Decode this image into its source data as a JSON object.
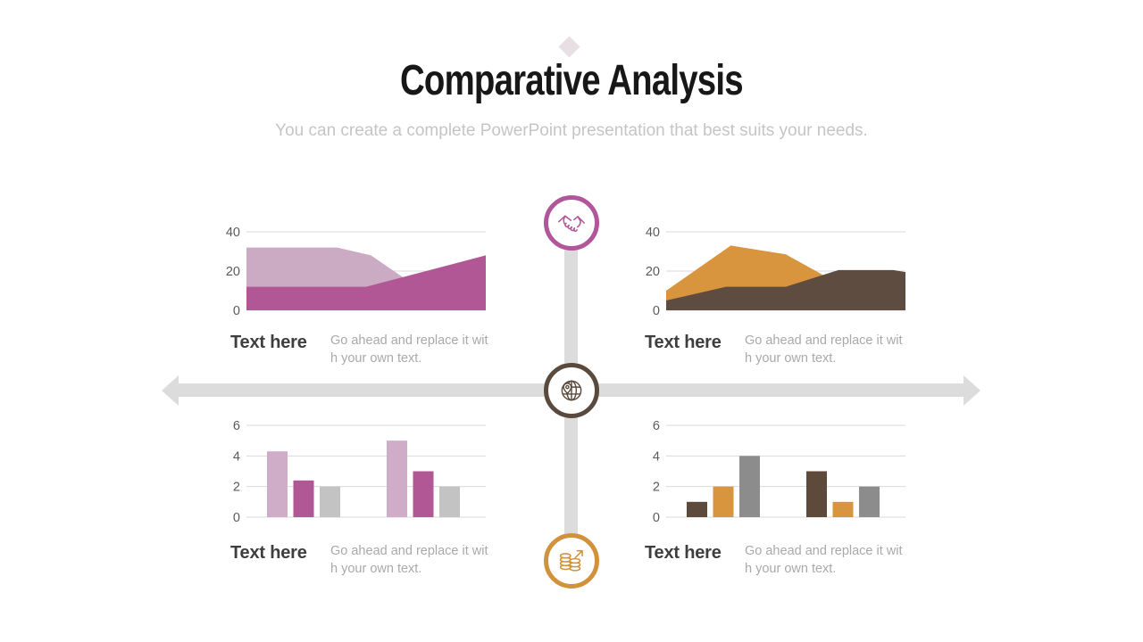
{
  "slide": {
    "title": "Comparative Analysis",
    "subtitle": "You can create a complete PowerPoint presentation that best suits your needs.",
    "accent_diamond_color": "#e8dfe5",
    "axis_color": "#dcdcdc"
  },
  "icons": [
    {
      "id": "handshake",
      "color": "#b2569b"
    },
    {
      "id": "globe-location",
      "color": "#5a4a3d"
    },
    {
      "id": "coins-growth",
      "color": "#d2923c"
    }
  ],
  "quadrants": [
    {
      "id": "top-left",
      "label": "Text here",
      "desc_line1": "Go ahead and replace it wit",
      "desc_line2": "h your own text."
    },
    {
      "id": "top-right",
      "label": "Text here",
      "desc_line1": "Go ahead and replace it wit",
      "desc_line2": "h your own text."
    },
    {
      "id": "bottom-left",
      "label": "Text here",
      "desc_line1": "Go ahead and replace it wit",
      "desc_line2": "h your own text."
    },
    {
      "id": "bottom-right",
      "label": "Text here",
      "desc_line1": "Go ahead and replace it wit",
      "desc_line2": "h your own text."
    }
  ],
  "chart_style": {
    "grid_color": "#d9d9d9",
    "tick_color": "#5a5a5a",
    "tick_font_size": 14.5
  },
  "chart_data": [
    {
      "type": "area",
      "position": "top-left",
      "title": "",
      "ylim": [
        0,
        40
      ],
      "yticks": [
        0,
        20,
        40
      ],
      "grid": true,
      "legend": "none",
      "series": [
        {
          "name": "light-pink-area",
          "color": "#cbaac4",
          "x": [
            0,
            0.38,
            0.52,
            0.7,
            1.0
          ],
          "values": [
            32,
            32,
            28,
            13,
            12
          ]
        },
        {
          "name": "magenta-area",
          "color": "#b15796",
          "x": [
            0,
            0.5,
            1.0
          ],
          "values": [
            12,
            12,
            28
          ]
        }
      ]
    },
    {
      "type": "area",
      "position": "top-right",
      "title": "",
      "ylim": [
        0,
        40
      ],
      "yticks": [
        0,
        20,
        40
      ],
      "grid": true,
      "legend": "none",
      "series": [
        {
          "name": "orange-area",
          "color": "#d9943e",
          "x": [
            0,
            0.27,
            0.5,
            0.7,
            1.0
          ],
          "values": [
            10,
            33,
            28.5,
            15,
            12
          ]
        },
        {
          "name": "brown-area",
          "color": "#5d4c3f",
          "x": [
            0,
            0.25,
            0.5,
            0.72,
            0.95,
            1.0
          ],
          "values": [
            5,
            12,
            12,
            20.5,
            20.5,
            19.5
          ]
        }
      ]
    },
    {
      "type": "bar",
      "position": "bottom-left",
      "title": "",
      "ylim": [
        0,
        6
      ],
      "yticks": [
        0,
        2,
        4,
        6
      ],
      "grid": true,
      "legend": "none",
      "groups": 2,
      "series": [
        {
          "name": "light-pink-bars",
          "color": "#cfadc8",
          "values": [
            4.3,
            5
          ]
        },
        {
          "name": "magenta-bars",
          "color": "#b15796",
          "values": [
            2.4,
            3
          ]
        },
        {
          "name": "gray-bars",
          "color": "#c3c3c3",
          "values": [
            2,
            2
          ]
        }
      ]
    },
    {
      "type": "bar",
      "position": "bottom-right",
      "title": "",
      "ylim": [
        0,
        6
      ],
      "yticks": [
        0,
        2,
        4,
        6
      ],
      "grid": true,
      "legend": "none",
      "groups": 2,
      "series": [
        {
          "name": "brown-bars",
          "color": "#5d4a3b",
          "values": [
            1,
            3
          ]
        },
        {
          "name": "orange-bars",
          "color": "#d9943e",
          "values": [
            2,
            1
          ]
        },
        {
          "name": "dark-gray-bars",
          "color": "#8c8c8c",
          "values": [
            4,
            2
          ]
        }
      ]
    }
  ]
}
